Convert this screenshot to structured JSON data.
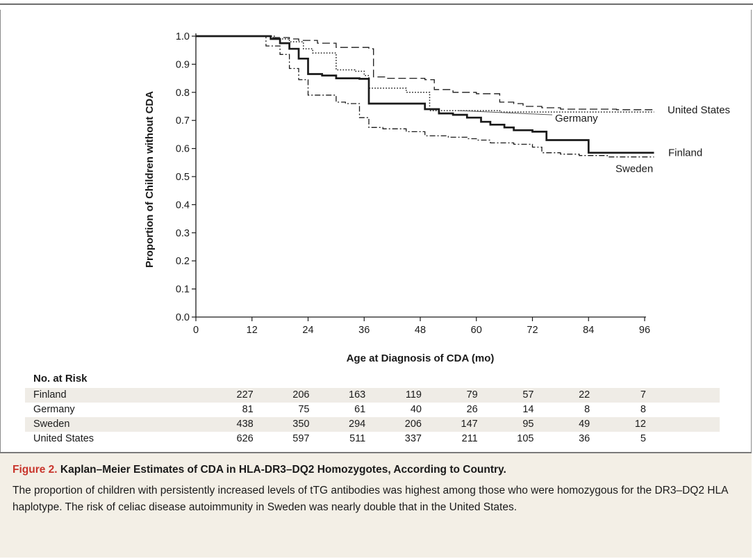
{
  "chart_data": {
    "type": "line",
    "xlabel": "Age at Diagnosis of CDA (mo)",
    "ylabel": "Proportion of Children without CDA",
    "xlim": [
      0,
      96
    ],
    "ylim": [
      0.0,
      1.0
    ],
    "xticks": [
      "0",
      "12",
      "24",
      "36",
      "48",
      "60",
      "72",
      "84",
      "96"
    ],
    "yticks": [
      "0.0",
      "0.1",
      "0.2",
      "0.3",
      "0.4",
      "0.5",
      "0.6",
      "0.7",
      "0.8",
      "0.9",
      "1.0"
    ],
    "grid": false,
    "series": [
      {
        "name": "United States",
        "style": "dashed",
        "x": [
          0,
          13,
          16,
          20,
          22,
          26,
          30,
          37,
          38,
          41,
          45,
          49,
          51,
          55,
          60,
          65,
          68,
          70,
          74,
          78,
          84,
          90,
          98
        ],
        "y": [
          1.0,
          1.0,
          0.995,
          0.99,
          0.985,
          0.975,
          0.96,
          0.955,
          0.855,
          0.85,
          0.85,
          0.845,
          0.81,
          0.8,
          0.795,
          0.765,
          0.76,
          0.75,
          0.745,
          0.74,
          0.74,
          0.738,
          0.738
        ]
      },
      {
        "name": "Germany",
        "style": "dotted",
        "x": [
          0,
          14,
          17,
          20,
          23,
          25,
          30,
          34,
          36,
          37,
          40,
          45,
          49,
          50,
          60,
          65,
          70,
          75,
          80,
          84,
          90,
          98
        ],
        "y": [
          1.0,
          1.0,
          0.99,
          0.98,
          0.955,
          0.94,
          0.88,
          0.875,
          0.86,
          0.815,
          0.815,
          0.8,
          0.8,
          0.735,
          0.735,
          0.73,
          0.73,
          0.73,
          0.73,
          0.73,
          0.73,
          0.73
        ]
      },
      {
        "name": "Finland",
        "style": "solid",
        "x": [
          0,
          14,
          16,
          18,
          20,
          22,
          24,
          27,
          30,
          35,
          37,
          41,
          45,
          49,
          52,
          55,
          58,
          61,
          63,
          66,
          68,
          72,
          75,
          78,
          82,
          84,
          90,
          98
        ],
        "y": [
          1.0,
          1.0,
          0.99,
          0.975,
          0.955,
          0.92,
          0.865,
          0.86,
          0.85,
          0.848,
          0.76,
          0.76,
          0.76,
          0.74,
          0.725,
          0.72,
          0.71,
          0.695,
          0.685,
          0.675,
          0.665,
          0.66,
          0.63,
          0.63,
          0.63,
          0.585,
          0.585,
          0.585
        ]
      },
      {
        "name": "Sweden",
        "style": "dashdot",
        "x": [
          0,
          13,
          15,
          18,
          20,
          22,
          24,
          30,
          32,
          35,
          37,
          40,
          45,
          49,
          54,
          58,
          60,
          63,
          68,
          72,
          74,
          78,
          82,
          85,
          88,
          90,
          98
        ],
        "y": [
          1.0,
          1.0,
          0.965,
          0.935,
          0.885,
          0.845,
          0.79,
          0.765,
          0.76,
          0.71,
          0.675,
          0.67,
          0.66,
          0.645,
          0.64,
          0.635,
          0.63,
          0.62,
          0.615,
          0.605,
          0.585,
          0.58,
          0.575,
          0.575,
          0.57,
          0.57,
          0.57
        ]
      }
    ],
    "annotations": [
      "United States",
      "Germany",
      "Finland",
      "Sweden"
    ]
  },
  "risk_table": {
    "title": "No. at Risk",
    "rows": [
      {
        "country": "Finland",
        "values": [
          "227",
          "206",
          "163",
          "119",
          "79",
          "57",
          "22",
          "7"
        ]
      },
      {
        "country": "Germany",
        "values": [
          "81",
          "75",
          "61",
          "40",
          "26",
          "14",
          "8",
          "8"
        ]
      },
      {
        "country": "Sweden",
        "values": [
          "438",
          "350",
          "294",
          "206",
          "147",
          "95",
          "49",
          "12"
        ]
      },
      {
        "country": "United States",
        "values": [
          "626",
          "597",
          "511",
          "337",
          "211",
          "105",
          "36",
          "5"
        ]
      }
    ]
  },
  "caption": {
    "figure_number": "Figure 2.",
    "title": "Kaplan–Meier Estimates of CDA in HLA-DR3–DQ2 Homozygotes, According to Country.",
    "body": "The proportion of children with persistently increased levels of tTG antibodies was highest among those who were homozygous for the DR3–DQ2 HLA haplotype. The risk of celiac disease autoimmunity in Sweden was nearly double that in the United States."
  },
  "colors": {
    "caption_background": "#f3efe6",
    "figure_number": "#c8352c",
    "risk_row_shade": "#efece6",
    "curve": "#1a1a1a"
  }
}
